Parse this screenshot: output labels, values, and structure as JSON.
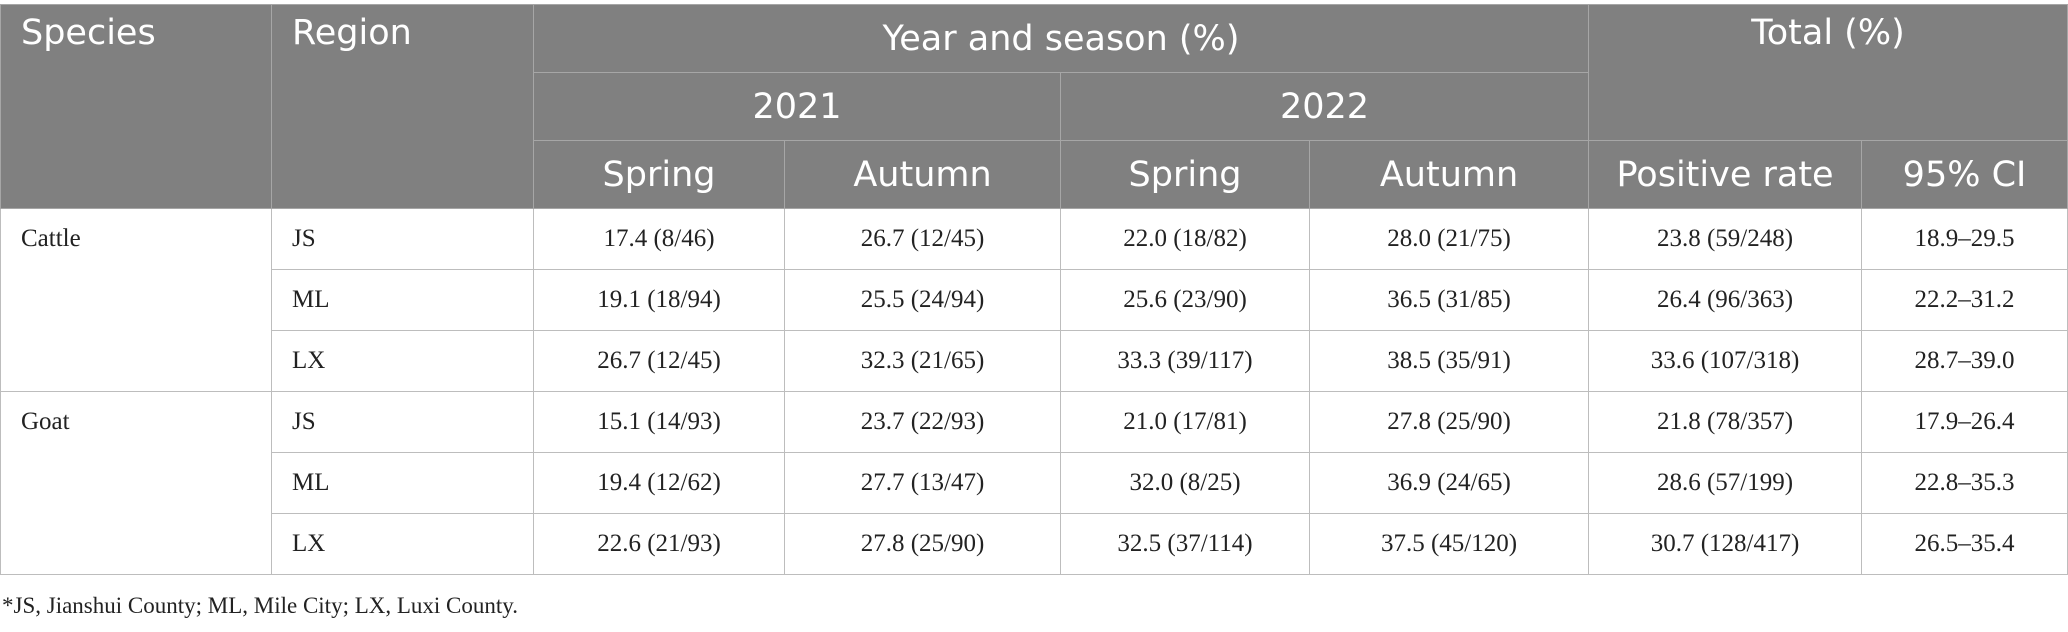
{
  "table": {
    "header": {
      "species": "Species",
      "region": "Region",
      "year_season": "Year and season (%)",
      "total": "Total (%)",
      "years": [
        "2021",
        "2022"
      ],
      "seasons": [
        "Spring",
        "Autumn",
        "Spring",
        "Autumn"
      ],
      "positive_rate": "Positive rate",
      "ci": "95% CI"
    },
    "groups": [
      {
        "species": "Cattle",
        "rows": [
          {
            "region": "JS",
            "s2021": "17.4 (8/46)",
            "a2021": "26.7 (12/45)",
            "s2022": "22.0 (18/82)",
            "a2022": "28.0 (21/75)",
            "positive_rate": "23.8 (59/248)",
            "ci": "18.9–29.5"
          },
          {
            "region": "ML",
            "s2021": "19.1 (18/94)",
            "a2021": "25.5 (24/94)",
            "s2022": "25.6 (23/90)",
            "a2022": "36.5 (31/85)",
            "positive_rate": "26.4 (96/363)",
            "ci": "22.2–31.2"
          },
          {
            "region": "LX",
            "s2021": "26.7 (12/45)",
            "a2021": "32.3 (21/65)",
            "s2022": "33.3 (39/117)",
            "a2022": "38.5 (35/91)",
            "positive_rate": "33.6 (107/318)",
            "ci": "28.7–39.0"
          }
        ]
      },
      {
        "species": "Goat",
        "rows": [
          {
            "region": "JS",
            "s2021": "15.1 (14/93)",
            "a2021": "23.7 (22/93)",
            "s2022": "21.0 (17/81)",
            "a2022": "27.8 (25/90)",
            "positive_rate": "21.8 (78/357)",
            "ci": "17.9–26.4"
          },
          {
            "region": "ML",
            "s2021": "19.4 (12/62)",
            "a2021": "27.7 (13/47)",
            "s2022": "32.0 (8/25)",
            "a2022": "36.9 (24/65)",
            "positive_rate": "28.6 (57/199)",
            "ci": "22.8–35.3"
          },
          {
            "region": "LX",
            "s2021": "22.6 (21/93)",
            "a2021": "27.8 (25/90)",
            "s2022": "32.5 (37/114)",
            "a2022": "37.5 (45/120)",
            "positive_rate": "30.7 (128/417)",
            "ci": "26.5–35.4"
          }
        ]
      }
    ],
    "footnote": "*JS, Jianshui County; ML, Mile City; LX, Luxi County."
  },
  "colors": {
    "header_bg": "#808080",
    "header_text": "#ffffff",
    "body_text": "#222222",
    "grid": "#bdbdbd"
  }
}
